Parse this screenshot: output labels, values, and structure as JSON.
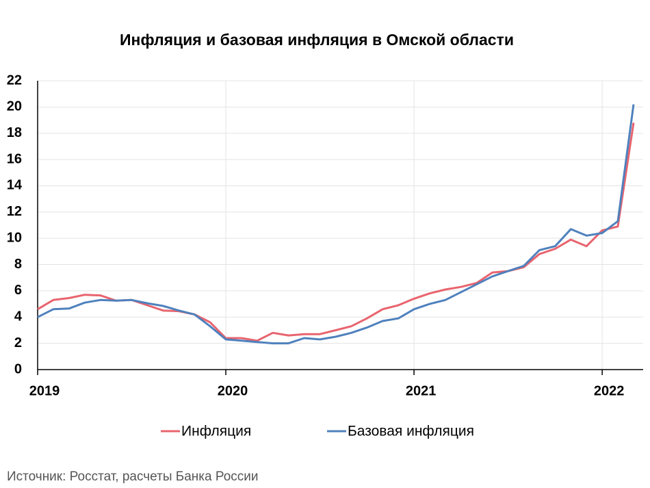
{
  "chart_data": {
    "type": "line",
    "title": "Инфляция и базовая инфляция в Омской области",
    "source": "Источник: Росстат, расчеты Банка России",
    "categories": [
      "2019",
      null,
      null,
      null,
      null,
      null,
      null,
      null,
      null,
      null,
      null,
      null,
      "2020",
      null,
      null,
      null,
      null,
      null,
      null,
      null,
      null,
      null,
      null,
      null,
      "2021",
      null,
      null,
      null,
      null,
      null,
      null,
      null,
      null,
      null,
      null,
      null,
      "2022",
      null,
      null
    ],
    "series": [
      {
        "name": "Инфляция",
        "color": "#e8646e",
        "values": [
          4.6,
          5.3,
          5.45,
          5.7,
          5.65,
          5.25,
          5.3,
          4.9,
          4.5,
          4.45,
          4.2,
          3.6,
          2.4,
          2.4,
          2.2,
          2.8,
          2.6,
          2.7,
          2.7,
          3.0,
          3.3,
          3.9,
          4.6,
          4.9,
          5.4,
          5.8,
          6.1,
          6.3,
          6.6,
          7.4,
          7.5,
          7.8,
          8.8,
          9.2,
          9.9,
          9.4,
          10.6,
          10.9,
          18.8
        ]
      },
      {
        "name": "Базовая инфляция",
        "color": "#4f81bd",
        "values": [
          4.0,
          4.6,
          4.65,
          5.1,
          5.3,
          5.25,
          5.3,
          5.05,
          4.85,
          4.5,
          4.2,
          3.3,
          2.3,
          2.2,
          2.1,
          2.0,
          2.0,
          2.4,
          2.3,
          2.5,
          2.8,
          3.2,
          3.7,
          3.9,
          4.6,
          5.0,
          5.3,
          5.9,
          6.5,
          7.1,
          7.5,
          7.9,
          9.1,
          9.4,
          10.7,
          10.2,
          10.4,
          11.3,
          20.2
        ]
      }
    ],
    "ylim": [
      0,
      22
    ],
    "yticks": [
      0,
      2,
      4,
      6,
      8,
      10,
      12,
      14,
      16,
      18,
      20,
      22
    ],
    "grid": true,
    "legend": "bottom"
  }
}
